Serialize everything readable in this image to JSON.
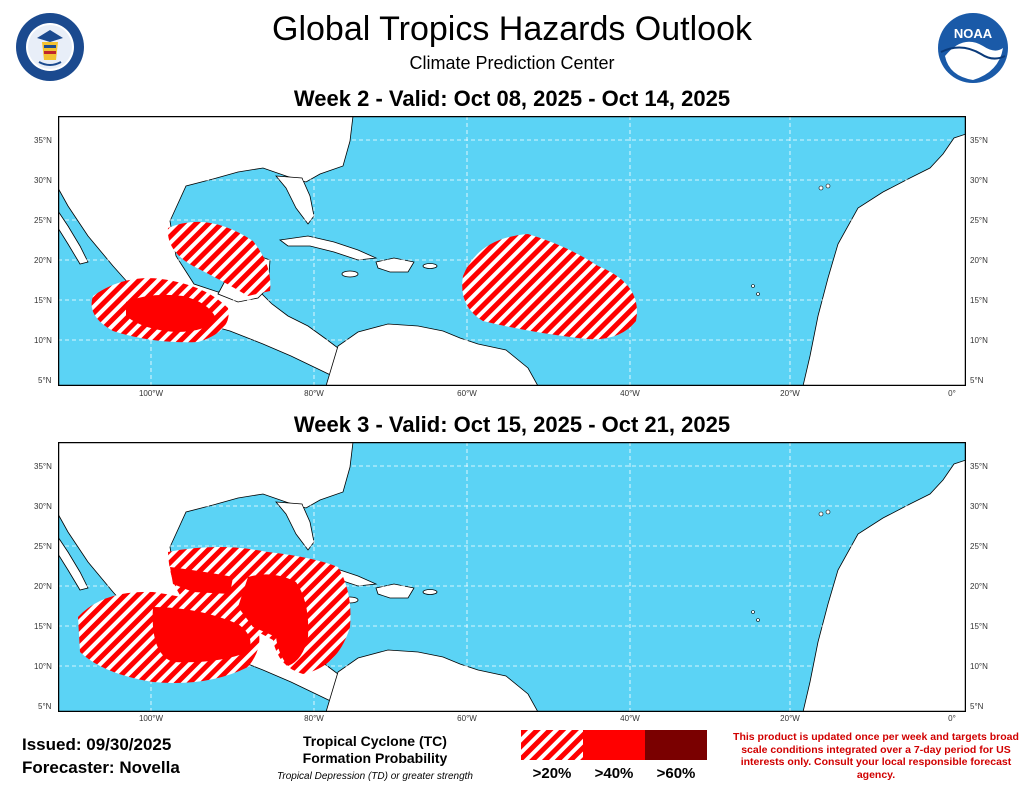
{
  "header": {
    "title": "Global Tropics Hazards Outlook",
    "subtitle": "Climate Prediction Center"
  },
  "logos": {
    "left": {
      "icon": "department-of-commerce-seal",
      "text": "DEPARTMENT OF COMMERCE · UNITED STATES OF AMERICA"
    },
    "right": {
      "icon": "noaa-logo",
      "text": "NOAA"
    }
  },
  "panels": [
    {
      "title": "Week 2 - Valid: Oct 08, 2025 - Oct 14, 2025"
    },
    {
      "title": "Week 3 - Valid: Oct 15, 2025 - Oct 21, 2025"
    }
  ],
  "axes": {
    "lat_labels": [
      "35°N",
      "30°N",
      "25°N",
      "20°N",
      "15°N",
      "10°N",
      "5°N"
    ],
    "lon_labels": [
      "100°W",
      "80°W",
      "60°W",
      "40°W",
      "20°W",
      "0°"
    ]
  },
  "colors": {
    "ocean": "#5bd3f5",
    "land": "#ffffff",
    "hazard_20": "#ff0000",
    "hazard_40": "#ff0000",
    "hazard_60": "#7a0000"
  },
  "footer": {
    "issued": "Issued: 09/30/2025",
    "forecaster": "Forecaster: Novella",
    "legend_title_1": "Tropical Cyclone (TC)",
    "legend_title_2": "Formation Probability",
    "legend_note": "Tropical Depression (TD) or greater strength",
    "legend": [
      ">20%",
      ">40%",
      ">60%"
    ],
    "disclaimer": "This product is updated once per week and targets broad scale conditions integrated over a 7-day period for US interests only. Consult your local responsible forecast agency."
  }
}
